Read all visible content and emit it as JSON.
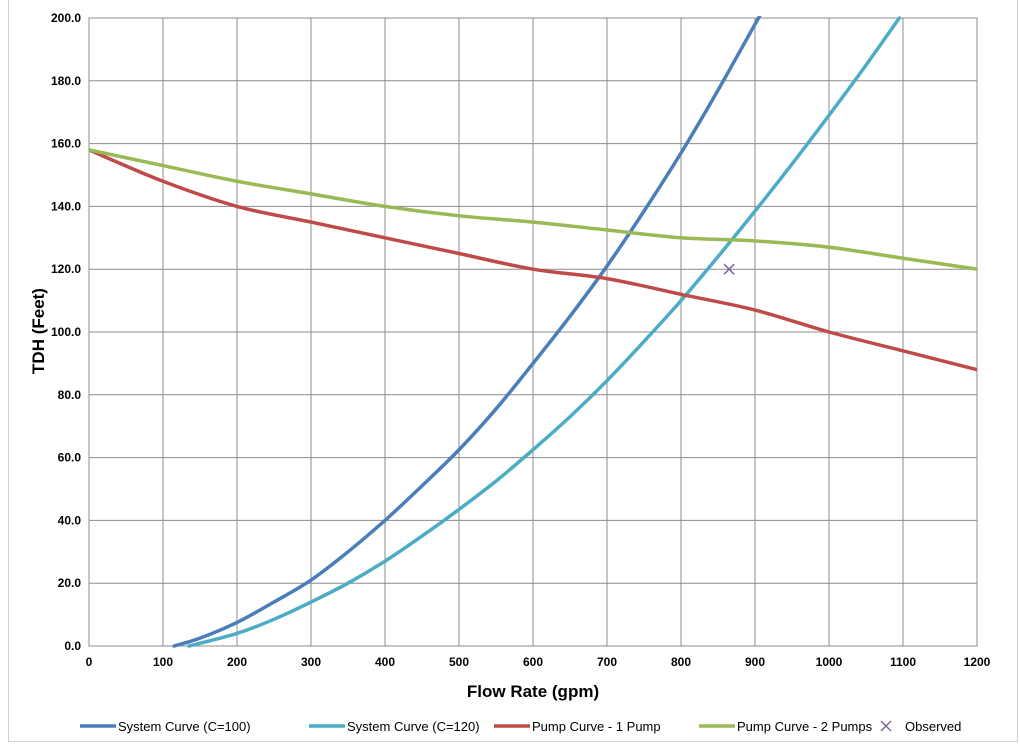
{
  "chart_data": {
    "type": "line",
    "xlabel": "Flow Rate (gpm)",
    "ylabel": "TDH (Feet)",
    "xlim": [
      0,
      1200
    ],
    "ylim": [
      0,
      200
    ],
    "x_ticks": [
      "0",
      "100",
      "200",
      "300",
      "400",
      "500",
      "600",
      "700",
      "800",
      "900",
      "1000",
      "1100",
      "1200"
    ],
    "y_ticks": [
      "0.0",
      "20.0",
      "40.0",
      "60.0",
      "80.0",
      "100.0",
      "120.0",
      "140.0",
      "160.0",
      "180.0",
      "200.0"
    ],
    "grid": true,
    "legend_position": "bottom",
    "series": [
      {
        "name": "System Curve (C=100)",
        "color": "#4a7ebb",
        "kind": "line",
        "x": [
          115,
          150,
          200,
          250,
          300,
          350,
          400,
          450,
          500,
          550,
          600,
          650,
          700,
          750,
          800,
          850,
          900,
          912
        ],
        "y": [
          0,
          2.5,
          7.5,
          14,
          21,
          30,
          40,
          51,
          62.5,
          75.5,
          90,
          105,
          121,
          138.5,
          157,
          177,
          198,
          203
        ]
      },
      {
        "name": "System Curve (C=120)",
        "color": "#4bacc6",
        "kind": "line",
        "x": [
          135,
          200,
          250,
          300,
          350,
          400,
          450,
          500,
          550,
          600,
          650,
          700,
          750,
          800,
          850,
          900,
          950,
          1000,
          1050,
          1095
        ],
        "y": [
          0,
          4,
          8.5,
          14,
          20,
          27,
          35,
          43.5,
          52.5,
          62.5,
          73,
          84.5,
          97,
          110,
          124,
          138.5,
          153.5,
          169,
          185,
          200
        ]
      },
      {
        "name": "Pump Curve - 1 Pump",
        "color": "#be4b48",
        "kind": "line",
        "x": [
          0,
          100,
          200,
          300,
          400,
          500,
          600,
          700,
          800,
          900,
          1000,
          1100,
          1200
        ],
        "y": [
          158,
          148,
          140,
          135,
          130,
          125,
          120,
          117,
          112,
          107,
          100,
          94,
          88
        ]
      },
      {
        "name": "Pump Curve - 2 Pumps",
        "color": "#98b954",
        "kind": "line",
        "x": [
          0,
          100,
          200,
          300,
          400,
          500,
          600,
          700,
          800,
          900,
          1000,
          1100,
          1200
        ],
        "y": [
          158,
          153,
          148,
          144,
          140,
          137,
          135,
          132.5,
          130,
          129,
          127,
          123.5,
          120
        ]
      },
      {
        "name": "Observed",
        "color": "#8064a2",
        "kind": "scatter",
        "x": [
          865
        ],
        "y": [
          120
        ]
      }
    ]
  }
}
